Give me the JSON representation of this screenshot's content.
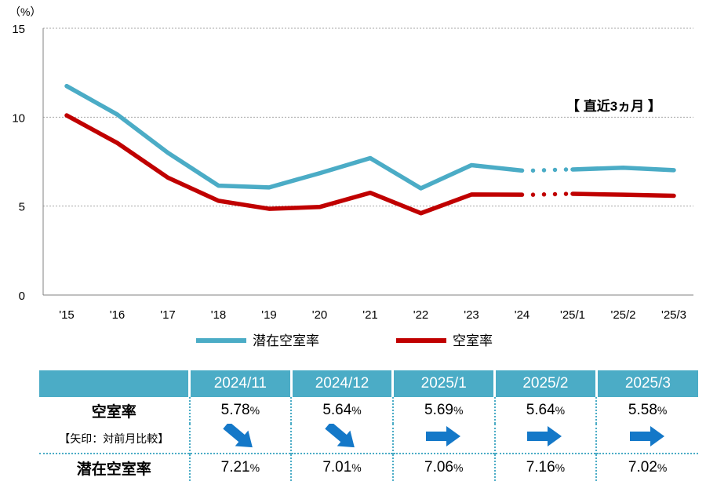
{
  "chart_data": {
    "type": "line",
    "y_unit_label": "（%）",
    "ylim": [
      0,
      15
    ],
    "y_ticks": [
      0,
      5,
      10,
      15
    ],
    "grid": true,
    "categories": [
      "'15",
      "'16",
      "'17",
      "'18",
      "'19",
      "'20",
      "'21",
      "'22",
      "'23",
      "'24",
      "'25/1",
      "'25/2",
      "'25/3"
    ],
    "annotation": "【 直近3ヵ月 】",
    "legend_position": "bottom",
    "series": [
      {
        "name": "潜在空室率",
        "color": "#4bacc6",
        "values": [
          11.75,
          10.15,
          8.0,
          6.15,
          6.05,
          6.85,
          7.7,
          6.0,
          7.3,
          7.0,
          7.06,
          7.16,
          7.02
        ]
      },
      {
        "name": "空室率",
        "color": "#c00000",
        "values": [
          10.1,
          8.55,
          6.6,
          5.3,
          4.85,
          4.95,
          5.75,
          4.6,
          5.65,
          5.64,
          5.69,
          5.64,
          5.58
        ]
      }
    ],
    "gap_after_index": 9,
    "gap_style": "dotted"
  },
  "table": {
    "columns": [
      "2024/11",
      "2024/12",
      "2025/1",
      "2025/2",
      "2025/3"
    ],
    "vacancy_label": "空室率",
    "arrow_label": "【矢印：対前月比較】",
    "latent_label": "潜在空室率",
    "vacancy_values": [
      "5.78",
      "5.64",
      "5.69",
      "5.64",
      "5.58"
    ],
    "latent_values": [
      "7.21",
      "7.01",
      "7.06",
      "7.16",
      "7.02"
    ],
    "percent_sign": "%",
    "arrows": [
      "down-right",
      "down-right",
      "right",
      "right",
      "right"
    ],
    "arrow_color": "#1478c8"
  }
}
